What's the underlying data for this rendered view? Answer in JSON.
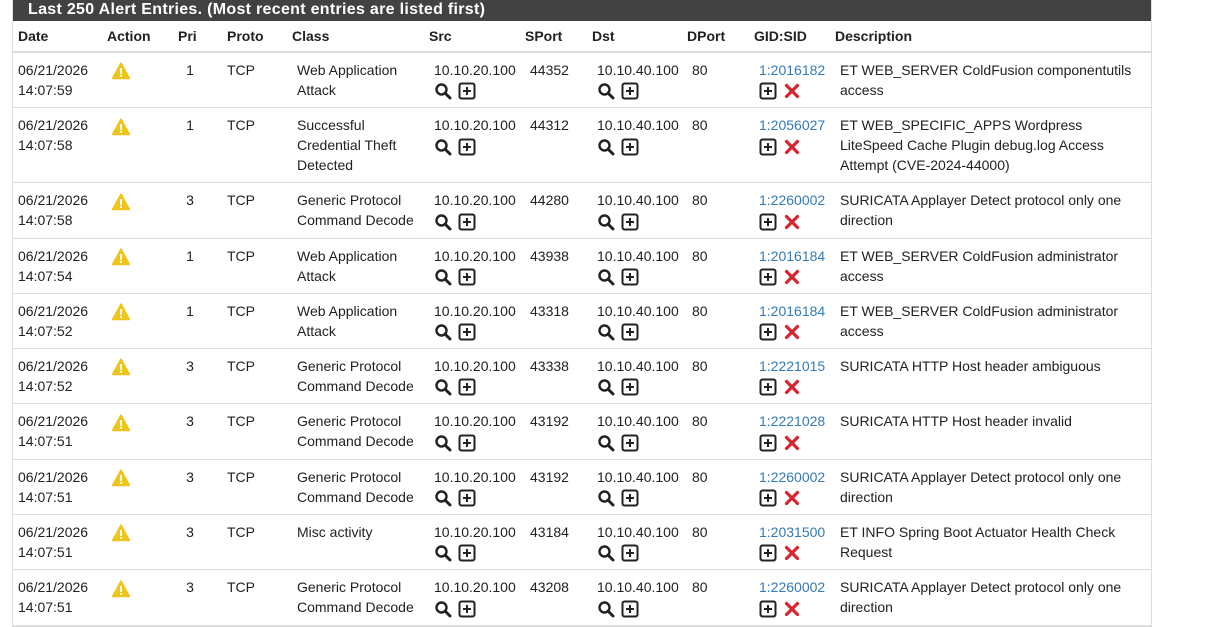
{
  "header": {
    "title": "Last 250 Alert Entries. (Most recent entries are listed first)"
  },
  "table": {
    "columns": [
      "Date",
      "Action",
      "Pri",
      "Proto",
      "Class",
      "Src",
      "SPort",
      "Dst",
      "DPort",
      "GID:SID",
      "Description"
    ],
    "rows": [
      {
        "date": "06/21/2026",
        "time": "14:07:59",
        "pri": 1,
        "proto": "TCP",
        "class": "Web Application Attack",
        "src": "10.10.20.100",
        "sport": 44352,
        "dst": "10.10.40.100",
        "dport": 80,
        "gidsid": "1:2016182",
        "description": "ET WEB_SERVER ColdFusion componentutils access"
      },
      {
        "date": "06/21/2026",
        "time": "14:07:58",
        "pri": 1,
        "proto": "TCP",
        "class": "Successful Credential Theft Detected",
        "src": "10.10.20.100",
        "sport": 44312,
        "dst": "10.10.40.100",
        "dport": 80,
        "gidsid": "1:2056027",
        "description": "ET WEB_SPECIFIC_APPS Wordpress LiteSpeed Cache Plugin debug.log Access Attempt (CVE-2024-44000)"
      },
      {
        "date": "06/21/2026",
        "time": "14:07:58",
        "pri": 3,
        "proto": "TCP",
        "class": "Generic Protocol Command Decode",
        "src": "10.10.20.100",
        "sport": 44280,
        "dst": "10.10.40.100",
        "dport": 80,
        "gidsid": "1:2260002",
        "description": "SURICATA Applayer Detect protocol only one direction"
      },
      {
        "date": "06/21/2026",
        "time": "14:07:54",
        "pri": 1,
        "proto": "TCP",
        "class": "Web Application Attack",
        "src": "10.10.20.100",
        "sport": 43938,
        "dst": "10.10.40.100",
        "dport": 80,
        "gidsid": "1:2016184",
        "description": "ET WEB_SERVER ColdFusion administrator access"
      },
      {
        "date": "06/21/2026",
        "time": "14:07:52",
        "pri": 1,
        "proto": "TCP",
        "class": "Web Application Attack",
        "src": "10.10.20.100",
        "sport": 43318,
        "dst": "10.10.40.100",
        "dport": 80,
        "gidsid": "1:2016184",
        "description": "ET WEB_SERVER ColdFusion administrator access"
      },
      {
        "date": "06/21/2026",
        "time": "14:07:52",
        "pri": 3,
        "proto": "TCP",
        "class": "Generic Protocol Command Decode",
        "src": "10.10.20.100",
        "sport": 43338,
        "dst": "10.10.40.100",
        "dport": 80,
        "gidsid": "1:2221015",
        "description": "SURICATA HTTP Host header ambiguous"
      },
      {
        "date": "06/21/2026",
        "time": "14:07:51",
        "pri": 3,
        "proto": "TCP",
        "class": "Generic Protocol Command Decode",
        "src": "10.10.20.100",
        "sport": 43192,
        "dst": "10.10.40.100",
        "dport": 80,
        "gidsid": "1:2221028",
        "description": "SURICATA HTTP Host header invalid"
      },
      {
        "date": "06/21/2026",
        "time": "14:07:51",
        "pri": 3,
        "proto": "TCP",
        "class": "Generic Protocol Command Decode",
        "src": "10.10.20.100",
        "sport": 43192,
        "dst": "10.10.40.100",
        "dport": 80,
        "gidsid": "1:2260002",
        "description": "SURICATA Applayer Detect protocol only one direction"
      },
      {
        "date": "06/21/2026",
        "time": "14:07:51",
        "pri": 3,
        "proto": "TCP",
        "class": "Misc activity",
        "src": "10.10.20.100",
        "sport": 43184,
        "dst": "10.10.40.100",
        "dport": 80,
        "gidsid": "1:2031500",
        "description": "ET INFO Spring Boot Actuator Health Check Request"
      },
      {
        "date": "06/21/2026",
        "time": "14:07:51",
        "pri": 3,
        "proto": "TCP",
        "class": "Generic Protocol Command Decode",
        "src": "10.10.20.100",
        "sport": 43208,
        "dst": "10.10.40.100",
        "dport": 80,
        "gidsid": "1:2260002",
        "description": "SURICATA Applayer Detect protocol only one direction"
      }
    ]
  }
}
